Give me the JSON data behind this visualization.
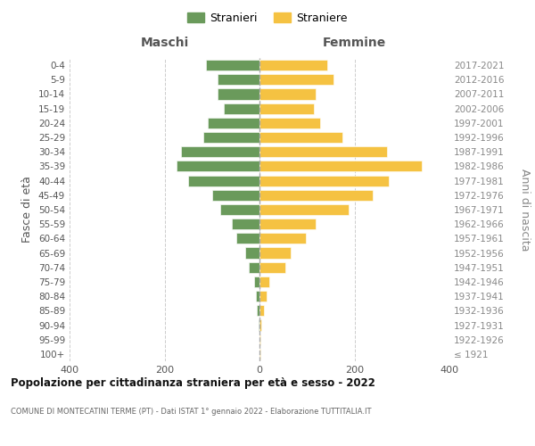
{
  "age_groups": [
    "100+",
    "95-99",
    "90-94",
    "85-89",
    "80-84",
    "75-79",
    "70-74",
    "65-69",
    "60-64",
    "55-59",
    "50-54",
    "45-49",
    "40-44",
    "35-39",
    "30-34",
    "25-29",
    "20-24",
    "15-19",
    "10-14",
    "5-9",
    "0-4"
  ],
  "birth_years": [
    "≤ 1921",
    "1922-1926",
    "1927-1931",
    "1932-1936",
    "1937-1941",
    "1942-1946",
    "1947-1951",
    "1952-1956",
    "1957-1961",
    "1962-1966",
    "1967-1971",
    "1972-1976",
    "1977-1981",
    "1982-1986",
    "1987-1991",
    "1992-1996",
    "1997-2001",
    "2002-2006",
    "2007-2011",
    "2012-2016",
    "2017-2021"
  ],
  "maschi": [
    0,
    0,
    1,
    5,
    8,
    12,
    22,
    30,
    48,
    58,
    82,
    100,
    150,
    175,
    165,
    118,
    108,
    75,
    88,
    88,
    112
  ],
  "femmine": [
    2,
    2,
    4,
    10,
    15,
    20,
    55,
    65,
    98,
    118,
    188,
    238,
    272,
    342,
    268,
    175,
    128,
    115,
    118,
    155,
    142
  ],
  "maschi_color": "#6a9a5b",
  "femmine_color": "#f5c242",
  "title": "Popolazione per cittadinanza straniera per età e sesso - 2022",
  "subtitle": "COMUNE DI MONTECATINI TERME (PT) - Dati ISTAT 1° gennaio 2022 - Elaborazione TUTTITALIA.IT",
  "ylabel_left": "Fasce di età",
  "ylabel_right": "Anni di nascita",
  "header_maschi": "Maschi",
  "header_femmine": "Femmine",
  "legend_maschi": "Stranieri",
  "legend_femmine": "Straniere",
  "xlim": 400
}
